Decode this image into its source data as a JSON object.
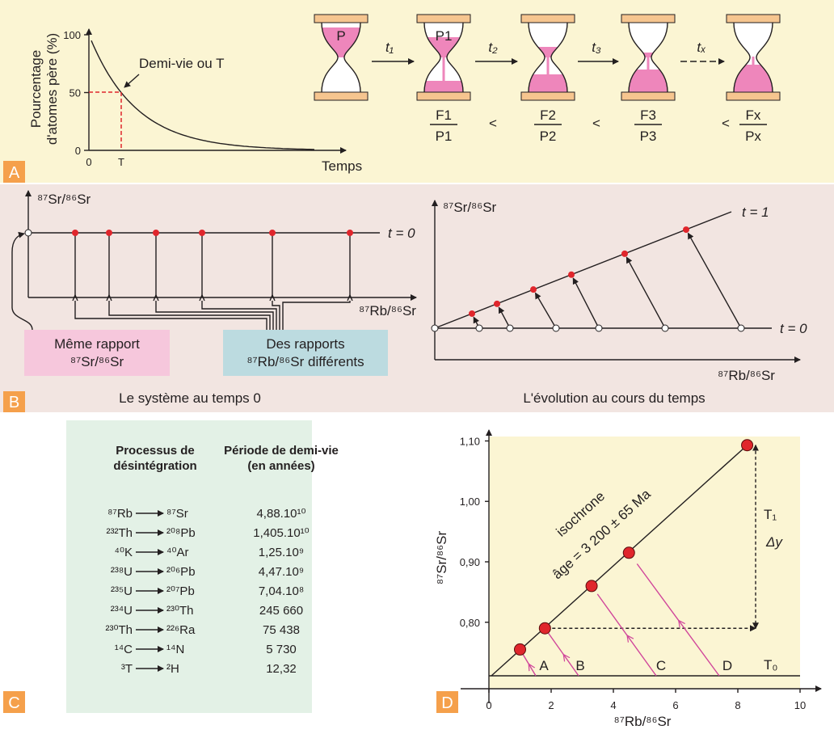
{
  "panel_a": {
    "label": "A",
    "y_title": [
      "Pourcentage",
      "d'atomes père (%)"
    ],
    "yticks": [
      100,
      50,
      0
    ],
    "origin": 0,
    "half_life_tick": "T",
    "annotation": "Demi-vie ou T",
    "x_title": "Temps",
    "hourglass_labels": [
      "P",
      "P1"
    ],
    "steps": [
      "t₁",
      "t₂",
      "t₃",
      "tₓ"
    ],
    "ratios": [
      {
        "num": "F1",
        "den": "P1"
      },
      {
        "num": "F2",
        "den": "P2"
      },
      {
        "num": "F3",
        "den": "P3"
      },
      {
        "num": "Fx",
        "den": "Px"
      }
    ],
    "comparator": "<"
  },
  "panel_b": {
    "label": "B",
    "y_title": "⁸⁷Sr/⁸⁶Sr",
    "x_title": "⁸⁷Rb/⁸⁶Sr",
    "t0": "t = 0",
    "t1": "t = 1",
    "box_same": [
      "Même rapport",
      "⁸⁷Sr/⁸⁶Sr"
    ],
    "box_diff": [
      "Des rapports",
      "⁸⁷Rb/⁸⁶Sr différents"
    ],
    "caption_left": "Le système au temps 0",
    "caption_right": "L'évolution au cours du temps"
  },
  "panel_c": {
    "label": "C",
    "header": [
      [
        "Processus de",
        "désintégration"
      ],
      [
        "Période de demi-vie",
        "(en années)"
      ]
    ],
    "rows": [
      [
        "⁸⁷Rb",
        "⁸⁷Sr",
        "4,88.10¹⁰"
      ],
      [
        "²³²Th",
        "²⁰⁸Pb",
        "1,405.10¹⁰"
      ],
      [
        "⁴⁰K",
        "⁴⁰Ar",
        "1,25.10⁹"
      ],
      [
        "²³⁸U",
        "²⁰⁶Pb",
        "4,47.10⁹"
      ],
      [
        "²³⁵U",
        "²⁰⁷Pb",
        "7,04.10⁸"
      ],
      [
        "²³⁴U",
        "²³⁰Th",
        "245 660"
      ],
      [
        "²³⁰Th",
        "²²⁶Ra",
        "75 438"
      ],
      [
        "¹⁴C",
        "¹⁴N",
        "5 730"
      ],
      [
        "³T",
        "²H",
        "12,32"
      ]
    ]
  },
  "panel_d": {
    "label": "D",
    "x_title": "⁸⁷Rb/⁸⁶Sr",
    "y_title": "⁸⁷Sr/⁸⁶Sr",
    "xlim": [
      0,
      10
    ],
    "ylim": [
      0.69,
      1.11
    ],
    "xticks": [
      0,
      2,
      4,
      6,
      8,
      10
    ],
    "yticks": [
      {
        "value": 0.8,
        "label": "0,80"
      },
      {
        "value": 0.9,
        "label": "0,90"
      },
      {
        "value": 1.0,
        "label": "1,00"
      },
      {
        "value": 1.1,
        "label": "1,10"
      }
    ],
    "points": {
      "x": [
        1.0,
        1.8,
        3.3,
        4.5,
        8.3
      ],
      "y": [
        0.755,
        0.79,
        0.86,
        0.915,
        1.093
      ]
    },
    "point_labels": [
      "A",
      "B",
      "C",
      "D"
    ],
    "isochrone": "isochrone",
    "age": "âge = 3 200 ± 65 Ma",
    "t0": "T₀",
    "t1": "T₁",
    "delta": "Δy"
  }
}
